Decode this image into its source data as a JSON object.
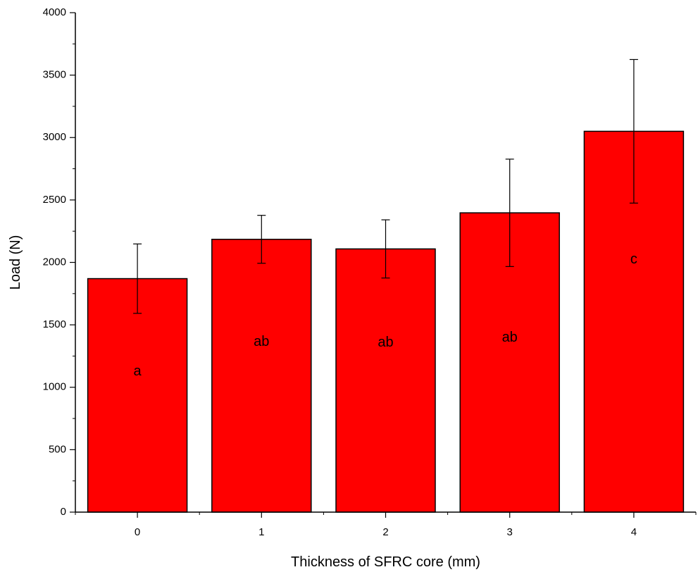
{
  "chart_data": {
    "type": "bar",
    "title": "",
    "xlabel": "Thickness of SFRC core (mm)",
    "ylabel": "Load (N)",
    "categories": [
      "0",
      "1",
      "2",
      "3",
      "4"
    ],
    "values": [
      1870,
      2185,
      2108,
      2397,
      3050
    ],
    "error": [
      278,
      192,
      233,
      430,
      575
    ],
    "group_labels": [
      "a",
      "ab",
      "ab",
      "ab",
      "c"
    ],
    "group_label_values": [
      1125,
      1360,
      1355,
      1395,
      2020
    ],
    "ylim": [
      0,
      4000
    ],
    "yticks": [
      0,
      500,
      1000,
      1500,
      2000,
      2500,
      3000,
      3500,
      4000
    ],
    "grid": false,
    "legend": "none",
    "bar_color": "#ff0000",
    "edge_color": "#000000"
  }
}
